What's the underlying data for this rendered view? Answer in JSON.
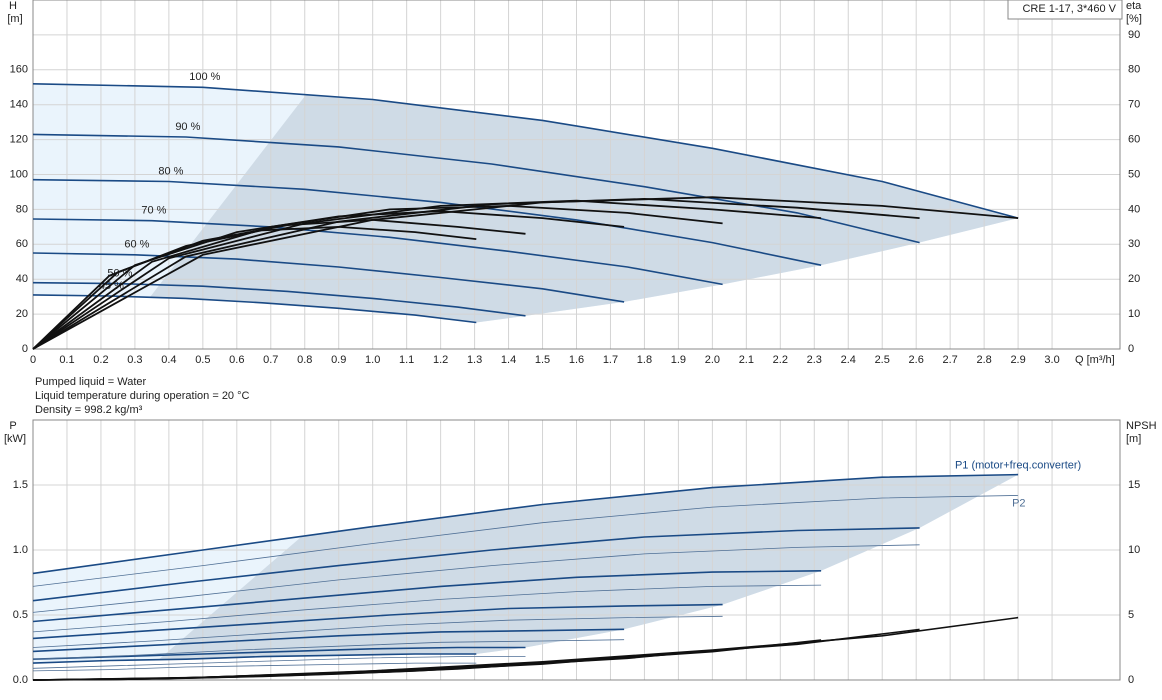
{
  "chart_data": [
    {
      "type": "line",
      "y_label": "H",
      "y_unit": "[m]",
      "y2_label": "eta",
      "y2_unit": "[%]",
      "x_label": "Q [m³/h]",
      "annotations": [
        "CRE 1-17, 3*460 V"
      ],
      "xlim": [
        0,
        3.2
      ],
      "ylim": [
        0,
        200
      ],
      "y2lim": [
        0,
        100
      ],
      "xticks": [
        0,
        0.1,
        0.2,
        0.3,
        0.4,
        0.5,
        0.6,
        0.7,
        0.8,
        0.9,
        {
          "value": 1,
          "label": "1.0"
        },
        1.1,
        1.2,
        1.3,
        1.4,
        1.5,
        1.6,
        1.7,
        1.8,
        1.9,
        {
          "value": 2,
          "label": "2.0"
        },
        2.1,
        2.2,
        2.3,
        2.4,
        2.5,
        2.6,
        2.7,
        2.8,
        2.9,
        {
          "value": 3,
          "label": "3.0"
        }
      ],
      "xtick_labels": true,
      "yticks": [
        0,
        20,
        40,
        60,
        80,
        100,
        120,
        140,
        160
      ],
      "y2ticks": [
        0,
        10,
        20,
        30,
        40,
        50,
        60,
        70,
        80,
        90
      ],
      "grid_axis": "y2",
      "label_at": "start",
      "series": [
        {
          "name": "100 %",
          "color": "#1a4a85",
          "line_width": 1.6,
          "shaded": true,
          "x": [
            0,
            0.5,
            1,
            1.5,
            2,
            2.5,
            2.9
          ],
          "values": [
            152,
            150,
            143,
            131,
            115,
            96,
            75
          ]
        },
        {
          "name": "90 %",
          "color": "#1a4a85",
          "line_width": 1.6,
          "shaded": true,
          "x": [
            0,
            0.45,
            0.9,
            1.35,
            1.8,
            2.25,
            2.61
          ],
          "values": [
            123,
            121.5,
            115.8,
            106,
            93,
            78,
            61
          ]
        },
        {
          "name": "80 %",
          "color": "#1a4a85",
          "line_width": 1.6,
          "shaded": true,
          "x": [
            0,
            0.4,
            0.8,
            1.2,
            1.6,
            2,
            2.32
          ],
          "values": [
            97,
            96,
            91.5,
            84,
            74,
            61,
            48
          ]
        },
        {
          "name": "70 %",
          "color": "#1a4a85",
          "line_width": 1.6,
          "shaded": true,
          "x": [
            0,
            0.35,
            0.7,
            1.05,
            1.4,
            1.75,
            2.03
          ],
          "values": [
            74.5,
            73.5,
            70,
            64,
            56,
            47,
            37
          ]
        },
        {
          "name": "60 %",
          "color": "#1a4a85",
          "line_width": 1.6,
          "shaded": true,
          "x": [
            0,
            0.3,
            0.6,
            0.9,
            1.2,
            1.5,
            1.74
          ],
          "values": [
            55,
            54,
            51.5,
            47,
            41,
            34.5,
            27
          ]
        },
        {
          "name": "50 %",
          "color": "#1a4a85",
          "line_width": 1.6,
          "shaded": true,
          "x": [
            0,
            0.25,
            0.5,
            0.75,
            1,
            1.25,
            1.45
          ],
          "values": [
            38,
            37.5,
            36,
            33,
            29,
            24,
            19
          ]
        },
        {
          "name": "45 %",
          "color": "#1a4a85",
          "line_width": 1.6,
          "shaded": true,
          "x": [
            0,
            0.225,
            0.45,
            0.675,
            0.9,
            1.125,
            1.305
          ],
          "values": [
            31,
            30.4,
            29,
            26.5,
            23.3,
            19.4,
            15.2
          ]
        },
        {
          "axis": "y2",
          "color": "#111111",
          "line_width": 1.8,
          "x": [
            0,
            0.5,
            1,
            1.5,
            2,
            2.5,
            2.9
          ],
          "values": [
            0,
            27,
            37,
            42,
            43.5,
            41,
            37.5
          ]
        },
        {
          "axis": "y2",
          "color": "#111111",
          "line_width": 1.8,
          "x": [
            0,
            0.45,
            0.9,
            1.35,
            1.8,
            2.25,
            2.61
          ],
          "values": [
            0,
            26.5,
            36.5,
            41.5,
            43,
            40.5,
            37.5
          ]
        },
        {
          "axis": "y2",
          "color": "#111111",
          "line_width": 1.8,
          "x": [
            0,
            0.4,
            0.8,
            1.2,
            1.6,
            2,
            2.32
          ],
          "values": [
            0,
            26,
            36,
            41,
            42.5,
            40,
            37.5
          ]
        },
        {
          "axis": "y2",
          "color": "#111111",
          "line_width": 1.8,
          "x": [
            0,
            0.35,
            0.7,
            1.05,
            1.4,
            1.75,
            2.03
          ],
          "values": [
            0,
            25,
            35,
            40,
            41,
            39,
            36
          ]
        },
        {
          "axis": "y2",
          "color": "#111111",
          "line_width": 1.8,
          "x": [
            0,
            0.3,
            0.6,
            0.9,
            1.2,
            1.5,
            1.74
          ],
          "values": [
            0,
            24,
            33.5,
            38,
            39.5,
            37.5,
            35
          ]
        },
        {
          "axis": "y2",
          "color": "#111111",
          "line_width": 1.8,
          "x": [
            0,
            0.25,
            0.5,
            0.75,
            1,
            1.25,
            1.45
          ],
          "values": [
            0,
            22,
            31,
            35.5,
            37,
            35,
            33
          ]
        },
        {
          "axis": "y2",
          "color": "#111111",
          "line_width": 1.8,
          "x": [
            0,
            0.225,
            0.45,
            0.675,
            0.9,
            1.125,
            1.305
          ],
          "values": [
            0,
            21,
            29.5,
            34,
            35,
            33.5,
            31.5
          ]
        }
      ]
    },
    {
      "type": "line",
      "y_label": "P",
      "y_unit": "[kW]",
      "y2_label": "NPSH",
      "y2_unit": "[m]",
      "annotations": [
        "Pumped liquid = Water",
        "Liquid temperature during operation = 20 °C",
        "Density = 998.2 kg/m³"
      ],
      "xlim": [
        0,
        3.2
      ],
      "ylim": [
        0,
        2
      ],
      "y2lim": [
        0,
        20
      ],
      "xticks": [
        0,
        0.1,
        0.2,
        0.3,
        0.4,
        0.5,
        0.6,
        0.7,
        0.8,
        0.9,
        1,
        1.1,
        1.2,
        1.3,
        1.4,
        1.5,
        1.6,
        1.7,
        1.8,
        1.9,
        2,
        2.1,
        2.2,
        2.3,
        2.4,
        2.5,
        2.6,
        2.7,
        2.8,
        2.9,
        3
      ],
      "xtick_labels": false,
      "yticks": [
        {
          "value": 0,
          "label": "0.0"
        },
        0.5,
        {
          "value": 1,
          "label": "1.0"
        },
        1.5
      ],
      "y2ticks": [
        0,
        5,
        10,
        15
      ],
      "grid_axis": "y",
      "label_at": "end",
      "series": [
        {
          "name": "P1 (motor+freq.converter)",
          "color": "#1a4a85",
          "line_width": 1.6,
          "shaded": true,
          "x": [
            0,
            0.5,
            1,
            1.5,
            2,
            2.5,
            2.9
          ],
          "values": [
            0.82,
            1.0,
            1.18,
            1.35,
            1.48,
            1.56,
            1.58
          ]
        },
        {
          "color": "#1a4a85",
          "line_width": 1.6,
          "shaded": true,
          "x": [
            0,
            0.45,
            0.9,
            1.35,
            1.8,
            2.25,
            2.61
          ],
          "values": [
            0.61,
            0.75,
            0.88,
            1.0,
            1.1,
            1.15,
            1.17
          ]
        },
        {
          "color": "#1a4a85",
          "line_width": 1.6,
          "shaded": true,
          "x": [
            0,
            0.4,
            0.8,
            1.2,
            1.6,
            2,
            2.32
          ],
          "values": [
            0.45,
            0.54,
            0.63,
            0.72,
            0.79,
            0.83,
            0.84
          ]
        },
        {
          "color": "#1a4a85",
          "line_width": 1.6,
          "shaded": true,
          "x": [
            0,
            0.35,
            0.7,
            1.05,
            1.4,
            1.75,
            2.03
          ],
          "values": [
            0.32,
            0.38,
            0.44,
            0.5,
            0.55,
            0.57,
            0.58
          ]
        },
        {
          "color": "#1a4a85",
          "line_width": 1.6,
          "shaded": true,
          "x": [
            0,
            0.3,
            0.6,
            0.9,
            1.2,
            1.5,
            1.74
          ],
          "values": [
            0.22,
            0.26,
            0.3,
            0.34,
            0.37,
            0.38,
            0.39
          ]
        },
        {
          "color": "#1a4a85",
          "line_width": 1.6,
          "shaded": true,
          "x": [
            0,
            0.25,
            0.5,
            0.75,
            1,
            1.25,
            1.45
          ],
          "values": [
            0.16,
            0.18,
            0.2,
            0.22,
            0.24,
            0.25,
            0.25
          ]
        },
        {
          "color": "#1a4a85",
          "line_width": 1.6,
          "shaded": true,
          "x": [
            0,
            0.225,
            0.45,
            0.675,
            0.9,
            1.125,
            1.305
          ],
          "values": [
            0.13,
            0.15,
            0.16,
            0.18,
            0.19,
            0.2,
            0.2
          ]
        },
        {
          "name": "P2",
          "color": "#4f6f95",
          "line_width": 0.8,
          "x": [
            0,
            0.5,
            1,
            1.5,
            2,
            2.5,
            2.9
          ],
          "values": [
            0.72,
            0.88,
            1.05,
            1.21,
            1.33,
            1.4,
            1.42
          ]
        },
        {
          "color": "#4f6f95",
          "line_width": 0.8,
          "x": [
            0,
            0.45,
            0.9,
            1.35,
            1.8,
            2.25,
            2.61
          ],
          "values": [
            0.52,
            0.64,
            0.77,
            0.88,
            0.97,
            1.02,
            1.04
          ]
        },
        {
          "color": "#4f6f95",
          "line_width": 0.8,
          "x": [
            0,
            0.4,
            0.8,
            1.2,
            1.6,
            2,
            2.32
          ],
          "values": [
            0.37,
            0.45,
            0.54,
            0.62,
            0.68,
            0.72,
            0.73
          ]
        },
        {
          "color": "#4f6f95",
          "line_width": 0.8,
          "x": [
            0,
            0.35,
            0.7,
            1.05,
            1.4,
            1.75,
            2.03
          ],
          "values": [
            0.25,
            0.3,
            0.36,
            0.42,
            0.46,
            0.48,
            0.49
          ]
        },
        {
          "color": "#4f6f95",
          "line_width": 0.8,
          "x": [
            0,
            0.3,
            0.6,
            0.9,
            1.2,
            1.5,
            1.74
          ],
          "values": [
            0.16,
            0.19,
            0.23,
            0.26,
            0.29,
            0.3,
            0.31
          ]
        },
        {
          "color": "#4f6f95",
          "line_width": 0.8,
          "x": [
            0,
            0.25,
            0.5,
            0.75,
            1,
            1.25,
            1.45
          ],
          "values": [
            0.09,
            0.11,
            0.13,
            0.15,
            0.17,
            0.18,
            0.18
          ]
        },
        {
          "color": "#4f6f95",
          "line_width": 0.8,
          "x": [
            0,
            0.225,
            0.45,
            0.675,
            0.9,
            1.125,
            1.305
          ],
          "values": [
            0.07,
            0.08,
            0.1,
            0.11,
            0.12,
            0.13,
            0.13
          ]
        },
        {
          "axis": "y2",
          "color": "#111111",
          "line_width": 1.6,
          "x": [
            0,
            0.5,
            1,
            1.5,
            2,
            2.5,
            2.9
          ],
          "values": [
            0,
            0.2,
            0.7,
            1.4,
            2.3,
            3.4,
            4.8
          ]
        },
        {
          "axis": "y2",
          "color": "#111111",
          "line_width": 1.6,
          "x": [
            0,
            0.45,
            0.9,
            1.35,
            1.8,
            2.25,
            2.61
          ],
          "values": [
            0,
            0.16,
            0.57,
            1.13,
            1.86,
            2.75,
            3.89
          ]
        },
        {
          "axis": "y2",
          "color": "#111111",
          "line_width": 1.6,
          "x": [
            0,
            0.4,
            0.8,
            1.2,
            1.6,
            2,
            2.32
          ],
          "values": [
            0,
            0.13,
            0.45,
            0.9,
            1.47,
            2.18,
            3.07
          ]
        },
        {
          "axis": "y2",
          "color": "#111111",
          "line_width": 1.6,
          "x": [
            0,
            0.35,
            0.7,
            1.05,
            1.4,
            1.75,
            2.03
          ],
          "values": [
            0,
            0.1,
            0.34,
            0.69,
            1.13,
            1.67,
            2.35
          ]
        },
        {
          "axis": "y2",
          "color": "#111111",
          "line_width": 1.6,
          "x": [
            0,
            0.3,
            0.6,
            0.9,
            1.2,
            1.5,
            1.74
          ],
          "values": [
            0,
            0.07,
            0.25,
            0.5,
            0.83,
            1.22,
            1.73
          ]
        },
        {
          "axis": "y2",
          "color": "#111111",
          "line_width": 1.6,
          "x": [
            0,
            0.25,
            0.5,
            0.75,
            1,
            1.25,
            1.45
          ],
          "values": [
            0,
            0.05,
            0.18,
            0.35,
            0.58,
            0.85,
            1.2
          ]
        },
        {
          "axis": "y2",
          "color": "#111111",
          "line_width": 1.6,
          "x": [
            0,
            0.225,
            0.45,
            0.675,
            0.9,
            1.125,
            1.305
          ],
          "values": [
            0,
            0.04,
            0.14,
            0.28,
            0.47,
            0.69,
            0.97
          ]
        }
      ]
    }
  ]
}
